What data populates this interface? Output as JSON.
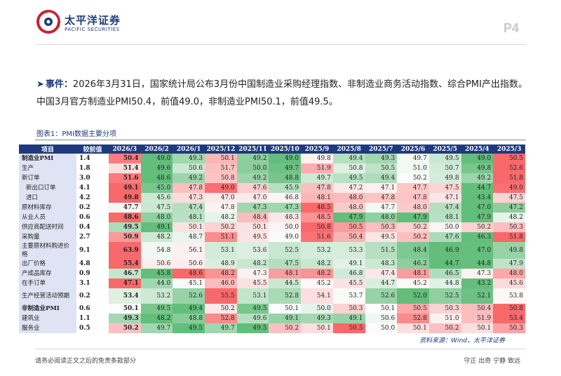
{
  "header": {
    "brand_cn": "太平洋证券",
    "brand_en": "PACIFIC SECURITIES",
    "page_number": "P4",
    "logo_icon": "pacific-securities-logo-icon"
  },
  "event": {
    "tag": "事件：",
    "text": "2026年3月31日，国家统计局公布3月份中国制造业采购经理指数、非制造业商务活动指数、综合PMI产出指数。中国3月官方制造业PMI50.4，前值49.0，非制造业PMI50.1，前值49.5。"
  },
  "figure": {
    "title": "图表1：PMI数据主要分项",
    "headers": [
      "项目",
      "较前值",
      "2026/3",
      "2026/2",
      "2026/1",
      "2025/12",
      "2025/11",
      "2025/10",
      "2025/9",
      "2025/8",
      "2025/7",
      "2025/6",
      "2025/5",
      "2025/4",
      "2025/3"
    ],
    "rows": [
      {
        "label": "制造业PMI",
        "bold": true,
        "indent": false,
        "tall": false,
        "change": "1.4",
        "values": [
          "50.4",
          "49.0",
          "49.3",
          "50.1",
          "49.2",
          "49.0",
          "49.8",
          "49.4",
          "49.3",
          "49.7",
          "49.5",
          "49.0",
          "50.5"
        ]
      },
      {
        "label": "生产",
        "bold": false,
        "indent": false,
        "tall": false,
        "change": "1.8",
        "values": [
          "51.4",
          "49.6",
          "50.6",
          "51.7",
          "50.0",
          "49.7",
          "51.9",
          "50.8",
          "50.5",
          "51.0",
          "50.7",
          "49.8",
          "52.6"
        ]
      },
      {
        "label": "新订单",
        "bold": false,
        "indent": false,
        "tall": false,
        "change": "3.0",
        "values": [
          "51.6",
          "48.6",
          "49.2",
          "50.8",
          "49.2",
          "48.8",
          "49.7",
          "49.5",
          "49.4",
          "50.2",
          "49.8",
          "49.2",
          "51.8"
        ]
      },
      {
        "label": "新出口订单",
        "bold": false,
        "indent": true,
        "tall": false,
        "change": "4.1",
        "values": [
          "49.1",
          "45.0",
          "47.8",
          "49.0",
          "47.6",
          "45.9",
          "47.8",
          "47.2",
          "47.1",
          "47.7",
          "47.5",
          "44.7",
          "49.0"
        ]
      },
      {
        "label": "进口",
        "bold": false,
        "indent": true,
        "tall": false,
        "change": "4.2",
        "values": [
          "49.8",
          "45.6",
          "47.3",
          "47.0",
          "47.0",
          "46.8",
          "48.1",
          "48.0",
          "47.8",
          "47.8",
          "47.1",
          "43.4",
          "47.5"
        ]
      },
      {
        "label": "原材料库存",
        "bold": false,
        "indent": false,
        "tall": false,
        "change": "0.2",
        "values": [
          "47.7",
          "47.5",
          "47.4",
          "47.8",
          "47.3",
          "47.3",
          "48.5",
          "48.0",
          "47.7",
          "48.0",
          "47.4",
          "47.0",
          "47.2"
        ]
      },
      {
        "label": "从业人员",
        "bold": false,
        "indent": false,
        "tall": false,
        "change": "0.6",
        "values": [
          "48.6",
          "48.0",
          "48.1",
          "48.2",
          "48.4",
          "48.3",
          "48.5",
          "47.9",
          "48.0",
          "47.9",
          "48.1",
          "47.9",
          "48.2"
        ]
      },
      {
        "label": "供应商配送时间",
        "bold": false,
        "indent": false,
        "tall": false,
        "change": "0.4",
        "values": [
          "49.5",
          "49.1",
          "50.1",
          "50.2",
          "50.1",
          "50.0",
          "50.8",
          "50.5",
          "50.3",
          "50.2",
          "50.0",
          "50.2",
          "50.3"
        ]
      },
      {
        "label": "采购量",
        "bold": false,
        "indent": false,
        "tall": false,
        "change": "2.7",
        "values": [
          "50.9",
          "48.2",
          "48.7",
          "51.1",
          "49.5",
          "49.0",
          "51.6",
          "50.4",
          "49.5",
          "50.2",
          "47.6",
          "46.3",
          "51.8"
        ]
      },
      {
        "label": "主要原材料购进价格",
        "bold": false,
        "indent": false,
        "tall": true,
        "change": "9.1",
        "values": [
          "63.9",
          "54.8",
          "56.1",
          "53.1",
          "53.6",
          "52.5",
          "53.2",
          "53.3",
          "51.5",
          "48.4",
          "46.9",
          "47.0",
          "49.8"
        ]
      },
      {
        "label": "出厂价格",
        "bold": false,
        "indent": false,
        "tall": false,
        "change": "4.8",
        "values": [
          "55.4",
          "50.6",
          "50.6",
          "48.9",
          "48.2",
          "47.5",
          "48.2",
          "49.1",
          "48.3",
          "46.2",
          "44.7",
          "44.8",
          "47.9"
        ]
      },
      {
        "label": "产成品库存",
        "bold": false,
        "indent": false,
        "tall": false,
        "change": "0.9",
        "values": [
          "46.7",
          "45.8",
          "48.6",
          "48.2",
          "47.3",
          "48.1",
          "48.2",
          "46.8",
          "47.4",
          "48.1",
          "46.5",
          "47.3",
          "48.0"
        ]
      },
      {
        "label": "在手订单",
        "bold": false,
        "indent": false,
        "tall": false,
        "change": "3.1",
        "values": [
          "47.1",
          "44.0",
          "45.1",
          "46.0",
          "45.5",
          "44.5",
          "45.2",
          "45.5",
          "44.7",
          "45.2",
          "44.8",
          "43.2",
          "45.6"
        ]
      },
      {
        "label": "生产经营活动预期",
        "bold": false,
        "indent": false,
        "tall": true,
        "change": "0.2",
        "values": [
          "53.4",
          "53.2",
          "52.6",
          "55.5",
          "53.1",
          "52.8",
          "54.1",
          "53.7",
          "52.6",
          "52.0",
          "52.5",
          "52.1",
          "53.8"
        ]
      },
      {
        "label": "非制造业PMI",
        "bold": true,
        "indent": false,
        "tall": false,
        "change": "0.6",
        "values": [
          "50.1",
          "49.5",
          "49.4",
          "50.2",
          "49.5",
          "50.1",
          "50.0",
          "50.3",
          "50.1",
          "50.5",
          "50.3",
          "50.4",
          "50.8"
        ]
      },
      {
        "label": "建筑业",
        "bold": false,
        "indent": false,
        "tall": false,
        "change": "1.1",
        "values": [
          "49.3",
          "48.2",
          "48.8",
          "52.8",
          "49.6",
          "49.1",
          "49.3",
          "49.1",
          "50.6",
          "52.8",
          "51.0",
          "51.9",
          "53.4"
        ]
      },
      {
        "label": "服务业",
        "bold": false,
        "indent": false,
        "tall": false,
        "change": "0.5",
        "values": [
          "50.2",
          "49.7",
          "49.5",
          "49.7",
          "49.5",
          "50.2",
          "50.1",
          "50.5",
          "50.0",
          "50.1",
          "50.2",
          "50.1",
          "50.3"
        ]
      }
    ],
    "source": "资料来源：Wind，太平洋证券"
  },
  "footer": {
    "left": "请务必阅读正文之后的免责条款部分",
    "right": "守正 出奇 宁静 致远"
  }
}
